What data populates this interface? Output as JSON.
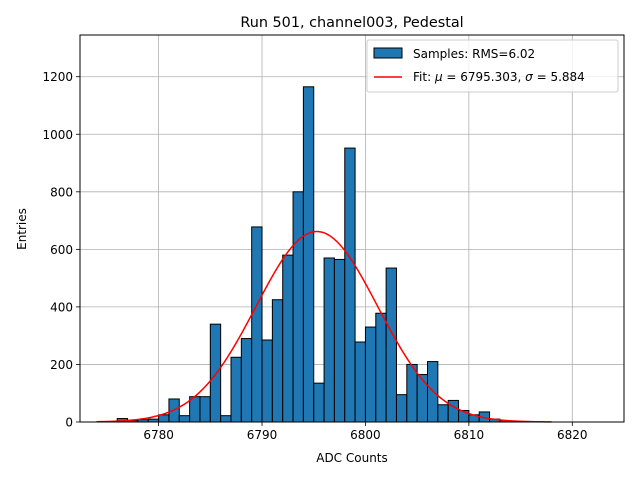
{
  "chart_data": {
    "type": "bar",
    "title": "Run 501, channel003, Pedestal",
    "xlabel": "ADC Counts",
    "ylabel": "Entries",
    "xlim": [
      6772.4,
      6825.0
    ],
    "ylim": [
      0,
      1345
    ],
    "x_ticks": [
      6780,
      6790,
      6800,
      6810,
      6820
    ],
    "y_ticks": [
      0,
      200,
      400,
      600,
      800,
      1000,
      1200
    ],
    "grid": true,
    "legend_position": "top-right",
    "bar_color": "#1f77b4",
    "bar_edge_color": "#000000",
    "fit_color": "#ff0000",
    "histogram": {
      "name": "Samples: RMS=6.02",
      "bin_start": 6776,
      "bin_width": 1,
      "counts": [
        12,
        5,
        8,
        10,
        25,
        80,
        22,
        88,
        88,
        340,
        22,
        225,
        290,
        678,
        285,
        425,
        580,
        800,
        1165,
        135,
        570,
        565,
        952,
        278,
        330,
        378,
        535,
        95,
        200,
        165,
        210,
        60,
        75,
        40,
        25,
        35,
        10,
        5,
        2,
        0,
        0
      ]
    },
    "fit": {
      "name_prefix": "Fit: ",
      "mu_symbol": "μ",
      "mu_text": " = 6795.303, ",
      "sigma_symbol": "σ",
      "sigma_text": " = 5.884",
      "mu": 6795.303,
      "sigma": 5.884,
      "amplitude": 662,
      "x_range": [
        6774,
        6818
      ]
    }
  }
}
